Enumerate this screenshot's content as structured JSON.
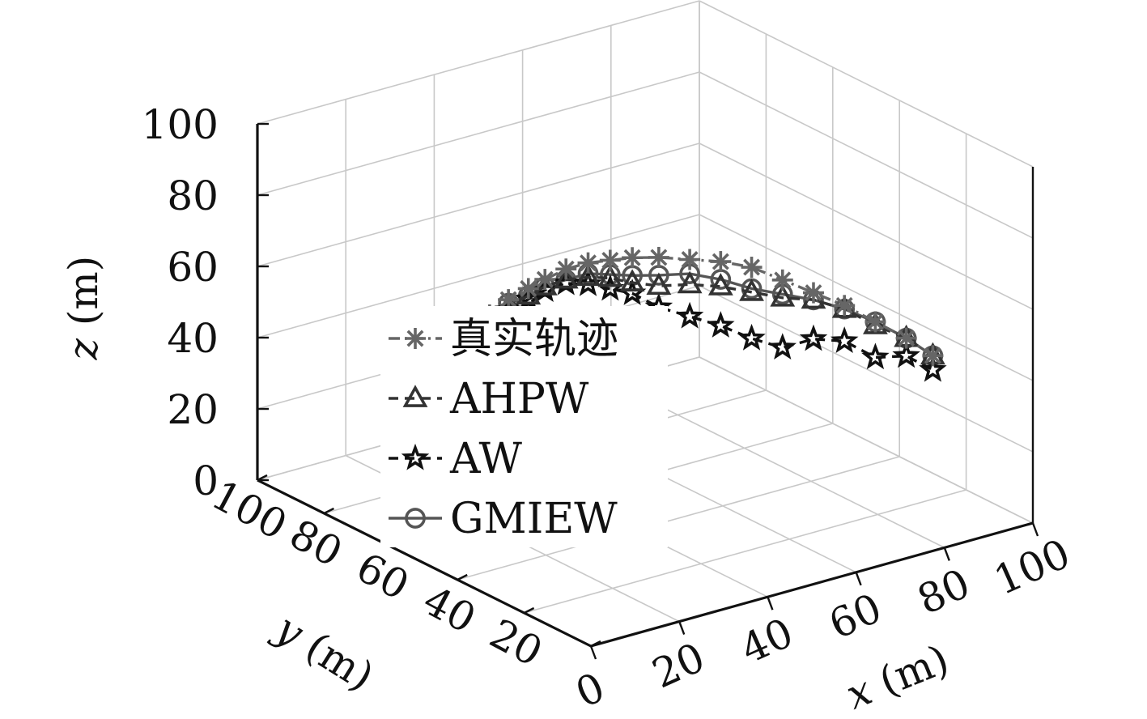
{
  "chart_data": {
    "type": "line3d",
    "title": "",
    "xlabel": "x (m)",
    "ylabel": "y (m)",
    "zlabel": "z (m)",
    "xlim": [
      0,
      100
    ],
    "ylim": [
      0,
      100
    ],
    "zlim": [
      0,
      100
    ],
    "x_ticks": [
      "0",
      "20",
      "40",
      "60",
      "80",
      "100"
    ],
    "y_ticks": [
      "20",
      "40",
      "60",
      "80",
      "100"
    ],
    "z_ticks": [
      "0",
      "20",
      "40",
      "60",
      "80",
      "100"
    ],
    "grid": true,
    "legend_position": "center-left",
    "series": [
      {
        "name": "真实轨迹",
        "marker": "asterisk",
        "line_style": "dash-dot",
        "color": "#666666",
        "points": [
          {
            "x": 4,
            "y": 43,
            "z": 60
          },
          {
            "x": 4,
            "y": 40,
            "z": 68
          },
          {
            "x": 5,
            "y": 37,
            "z": 74
          },
          {
            "x": 7,
            "y": 34,
            "z": 79
          },
          {
            "x": 10,
            "y": 32,
            "z": 82
          },
          {
            "x": 13,
            "y": 31,
            "z": 84
          },
          {
            "x": 17,
            "y": 30,
            "z": 86
          },
          {
            "x": 22,
            "y": 30,
            "z": 86
          },
          {
            "x": 27,
            "y": 30,
            "z": 85
          },
          {
            "x": 32,
            "y": 30,
            "z": 84
          },
          {
            "x": 38,
            "y": 30,
            "z": 82
          },
          {
            "x": 45,
            "y": 30,
            "z": 79
          },
          {
            "x": 52,
            "y": 30,
            "z": 76
          },
          {
            "x": 59,
            "y": 30,
            "z": 72
          },
          {
            "x": 66,
            "y": 30,
            "z": 66
          },
          {
            "x": 73,
            "y": 30,
            "z": 60
          },
          {
            "x": 80,
            "y": 30,
            "z": 54
          },
          {
            "x": 87,
            "y": 30,
            "z": 47
          },
          {
            "x": 94,
            "y": 30,
            "z": 40
          },
          {
            "x": 100,
            "y": 30,
            "z": 33
          }
        ]
      },
      {
        "name": "AHPW",
        "marker": "triangle",
        "line_style": "dashed",
        "color": "#333333",
        "points": [
          {
            "x": 4,
            "y": 43,
            "z": 60
          },
          {
            "x": 4,
            "y": 40,
            "z": 66
          },
          {
            "x": 5,
            "y": 37,
            "z": 72
          },
          {
            "x": 7,
            "y": 34,
            "z": 77
          },
          {
            "x": 10,
            "y": 32,
            "z": 80
          },
          {
            "x": 13,
            "y": 31,
            "z": 82
          },
          {
            "x": 17,
            "y": 30,
            "z": 83
          },
          {
            "x": 22,
            "y": 30,
            "z": 82
          },
          {
            "x": 27,
            "y": 30,
            "z": 80
          },
          {
            "x": 32,
            "y": 30,
            "z": 77
          },
          {
            "x": 38,
            "y": 30,
            "z": 74
          },
          {
            "x": 45,
            "y": 30,
            "z": 72
          },
          {
            "x": 52,
            "y": 30,
            "z": 69
          },
          {
            "x": 59,
            "y": 30,
            "z": 65
          },
          {
            "x": 66,
            "y": 30,
            "z": 61
          },
          {
            "x": 73,
            "y": 30,
            "z": 58
          },
          {
            "x": 80,
            "y": 30,
            "z": 53
          },
          {
            "x": 87,
            "y": 30,
            "z": 46
          },
          {
            "x": 94,
            "y": 30,
            "z": 40
          },
          {
            "x": 100,
            "y": 30,
            "z": 33
          }
        ]
      },
      {
        "name": "AW",
        "marker": "pentagram",
        "line_style": "dashed",
        "color": "#111111",
        "points": [
          {
            "x": 4,
            "y": 43,
            "z": 60
          },
          {
            "x": 4,
            "y": 40,
            "z": 65
          },
          {
            "x": 5,
            "y": 37,
            "z": 71
          },
          {
            "x": 7,
            "y": 34,
            "z": 76
          },
          {
            "x": 10,
            "y": 32,
            "z": 79
          },
          {
            "x": 13,
            "y": 31,
            "z": 81
          },
          {
            "x": 17,
            "y": 30,
            "z": 82
          },
          {
            "x": 22,
            "y": 30,
            "z": 80
          },
          {
            "x": 27,
            "y": 30,
            "z": 77
          },
          {
            "x": 32,
            "y": 30,
            "z": 74
          },
          {
            "x": 38,
            "y": 30,
            "z": 68
          },
          {
            "x": 45,
            "y": 30,
            "z": 63
          },
          {
            "x": 52,
            "y": 30,
            "z": 58
          },
          {
            "x": 59,
            "y": 30,
            "z": 52
          },
          {
            "x": 66,
            "y": 30,
            "z": 47
          },
          {
            "x": 73,
            "y": 30,
            "z": 47
          },
          {
            "x": 80,
            "y": 30,
            "z": 44
          },
          {
            "x": 87,
            "y": 30,
            "z": 37
          },
          {
            "x": 94,
            "y": 30,
            "z": 35
          },
          {
            "x": 100,
            "y": 30,
            "z": 29
          }
        ]
      },
      {
        "name": "GMIEW",
        "marker": "circle",
        "line_style": "solid",
        "color": "#555555",
        "points": [
          {
            "x": 4,
            "y": 43,
            "z": 60
          },
          {
            "x": 4,
            "y": 40,
            "z": 67
          },
          {
            "x": 5,
            "y": 37,
            "z": 73
          },
          {
            "x": 7,
            "y": 34,
            "z": 78
          },
          {
            "x": 10,
            "y": 32,
            "z": 80
          },
          {
            "x": 13,
            "y": 31,
            "z": 82
          },
          {
            "x": 17,
            "y": 30,
            "z": 83
          },
          {
            "x": 22,
            "y": 30,
            "z": 83
          },
          {
            "x": 27,
            "y": 30,
            "z": 81
          },
          {
            "x": 32,
            "y": 30,
            "z": 79
          },
          {
            "x": 38,
            "y": 30,
            "z": 77
          },
          {
            "x": 45,
            "y": 30,
            "z": 75
          },
          {
            "x": 52,
            "y": 30,
            "z": 71
          },
          {
            "x": 59,
            "y": 30,
            "z": 66
          },
          {
            "x": 66,
            "y": 30,
            "z": 62
          },
          {
            "x": 73,
            "y": 30,
            "z": 58
          },
          {
            "x": 80,
            "y": 30,
            "z": 53
          },
          {
            "x": 87,
            "y": 30,
            "z": 47
          },
          {
            "x": 94,
            "y": 30,
            "z": 40
          },
          {
            "x": 100,
            "y": 30,
            "z": 33
          }
        ]
      }
    ]
  }
}
